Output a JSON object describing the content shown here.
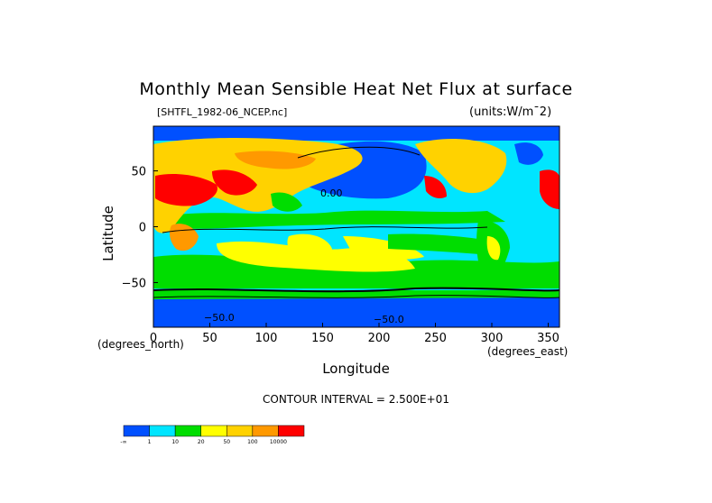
{
  "chart_data": {
    "type": "heatmap",
    "title": "Monthly Mean Sensible Heat Net Flux at surface",
    "file": "[SHTFL_1982-06_NCEP.nc]",
    "units": "(units:W/m^2)",
    "xlabel": "Longitude",
    "ylabel": "Latitude",
    "x_units": "(degrees_east)",
    "y_units": "(degrees_north)",
    "xlim": [
      0,
      360
    ],
    "ylim": [
      -90,
      90
    ],
    "x_ticks": [
      "0",
      "50",
      "100",
      "150",
      "200",
      "250",
      "300",
      "350"
    ],
    "y_ticks": [
      "50",
      "0",
      "−50"
    ],
    "contour_interval": "CONTOUR INTERVAL = 2.500E+01",
    "contour_labels": [
      "0.00",
      "−50.0",
      "−50.0"
    ],
    "colorbar": {
      "labels": [
        "-∞",
        "1",
        "10",
        "20",
        "50",
        "100",
        "10000"
      ],
      "colors": [
        "#0050ff",
        "#00e5ff",
        "#00dd00",
        "#ffff00",
        "#ffd200",
        "#ff9900",
        "#ff0000"
      ]
    }
  }
}
